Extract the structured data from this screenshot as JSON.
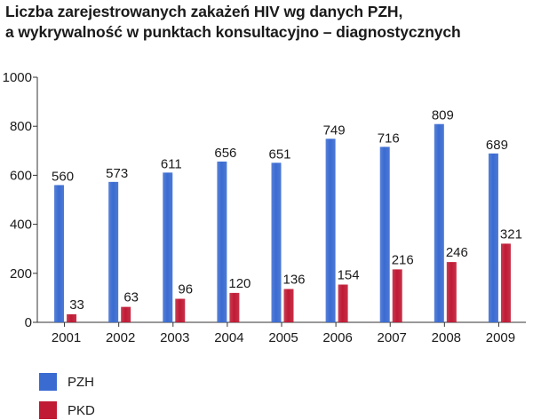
{
  "title_lines": [
    "Liczba zarejestrowanych zakażeń HIV wg danych PZH,",
    "a wykrywalność w punktach konsultacyjno – diagnostycznych"
  ],
  "colors": {
    "PZH": "#3a6bd1",
    "PKD": "#c01a35"
  },
  "chart_data": {
    "type": "bar",
    "title": "Liczba zarejestrowanych zakażeń HIV wg danych PZH, a wykrywalność w punktach konsultacyjno – diagnostycznych",
    "categories": [
      "2001",
      "2002",
      "2003",
      "2004",
      "2005",
      "2006",
      "2007",
      "2008",
      "2009"
    ],
    "series": [
      {
        "name": "PZH",
        "values": [
          560,
          573,
          611,
          656,
          651,
          749,
          716,
          809,
          689
        ]
      },
      {
        "name": "PKD",
        "values": [
          33,
          63,
          96,
          120,
          136,
          154,
          216,
          246,
          321
        ]
      }
    ],
    "ylim": [
      0,
      1000
    ],
    "yticks": [
      "0",
      "200",
      "400",
      "600",
      "800",
      "1000"
    ],
    "grid": false,
    "legend": "bottom-left"
  }
}
